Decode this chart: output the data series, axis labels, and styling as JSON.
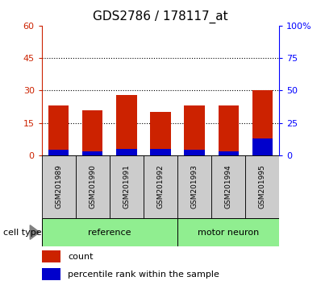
{
  "title": "GDS2786 / 178117_at",
  "categories": [
    "GSM201989",
    "GSM201990",
    "GSM201991",
    "GSM201992",
    "GSM201993",
    "GSM201994",
    "GSM201995"
  ],
  "count_values": [
    23,
    21,
    28,
    20,
    23,
    23,
    30
  ],
  "percentile_values": [
    4,
    3,
    5,
    5,
    4,
    3,
    13
  ],
  "bar_color_red": "#cc2200",
  "bar_color_blue": "#0000cc",
  "ylim_left": [
    0,
    60
  ],
  "ylim_right": [
    0,
    100
  ],
  "yticks_left": [
    0,
    15,
    30,
    45,
    60
  ],
  "yticks_right": [
    0,
    25,
    50,
    75,
    100
  ],
  "ytick_labels_right": [
    "0",
    "25",
    "50",
    "75",
    "100%"
  ],
  "group_labels": [
    "reference",
    "motor neuron"
  ],
  "group_color": "#90EE90",
  "cell_type_label": "cell type",
  "legend_count": "count",
  "legend_percentile": "percentile rank within the sample",
  "bar_width": 0.6,
  "bg_color_bar": "#cccccc",
  "title_fontsize": 11,
  "tick_fontsize": 8,
  "label_fontsize": 8
}
